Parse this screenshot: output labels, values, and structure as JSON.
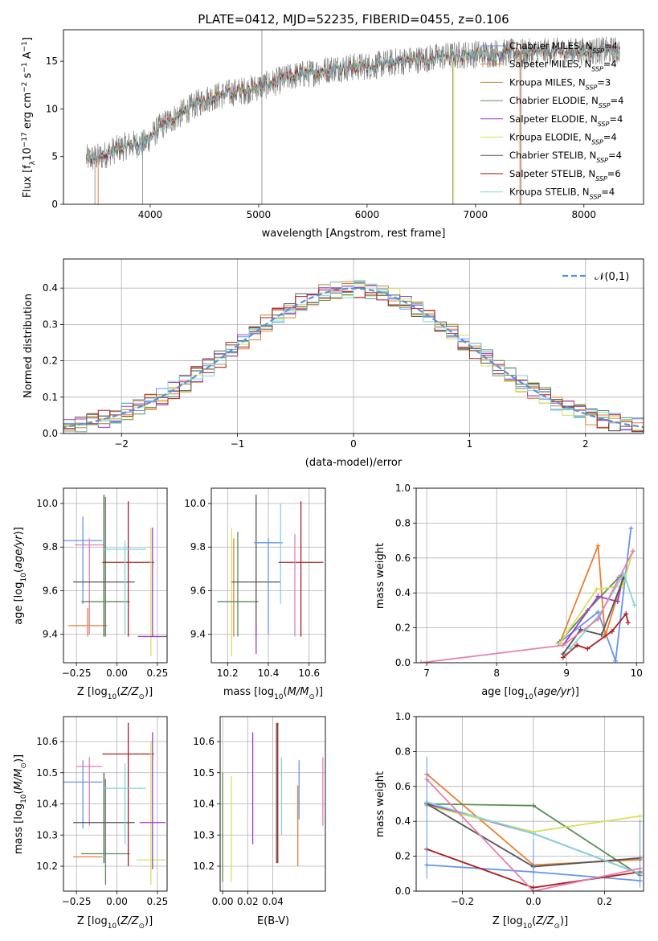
{
  "title": "PLATE=0412, MJD=52235, FIBERID=0455, z=0.106",
  "models": [
    {
      "imf": "Chabrier",
      "lib": "MILES",
      "nssp": "4",
      "color": "#6495ED"
    },
    {
      "imf": "Salpeter",
      "lib": "MILES",
      "nssp": "4",
      "color": "#ED7D31"
    },
    {
      "imf": "Kroupa",
      "lib": "MILES",
      "nssp": "3",
      "color": "#C08A2B"
    },
    {
      "imf": "Chabrier",
      "lib": "ELODIE",
      "nssp": "4",
      "color": "#5B8C5A"
    },
    {
      "imf": "Salpeter",
      "lib": "ELODIE",
      "nssp": "4",
      "color": "#A03CC8"
    },
    {
      "imf": "Kroupa",
      "lib": "ELODIE",
      "nssp": "4",
      "color": "#D8E05A"
    },
    {
      "imf": "Chabrier",
      "lib": "STELIB",
      "nssp": "4",
      "color": "#555555"
    },
    {
      "imf": "Salpeter",
      "lib": "STELIB",
      "nssp": "6",
      "color": "#AA1F1F"
    },
    {
      "imf": "Kroupa",
      "lib": "STELIB",
      "nssp": "4",
      "color": "#7FD6DC"
    }
  ],
  "extra_colors": {
    "salpeter_stelib_alt": "#E87FAE",
    "kroupa_elodie_alt": "#C8EA6A"
  },
  "chart_data": [
    {
      "id": "spectrum",
      "type": "line",
      "xlabel": "wavelength [Angstrom, rest frame]",
      "ylabel": "Flux [f_λ 10^-17 erg cm^-2 s^-1 A^-1]",
      "xlim": [
        3200,
        8550
      ],
      "ylim": [
        0,
        18.3
      ],
      "xticks": [
        4000,
        5000,
        6000,
        7000,
        8000
      ],
      "yticks": [
        0,
        5,
        10,
        15
      ],
      "legend": "upper right",
      "series_note": "data spectrum (gray) and 9 model fits",
      "anchors_x": [
        3450,
        3550,
        3650,
        3800,
        3950,
        4100,
        4300,
        4500,
        4700,
        4900,
        5100,
        5300,
        5500,
        5700,
        5900,
        6100,
        6300,
        6500,
        6700,
        6900,
        7100,
        7300,
        7500,
        7700,
        7900,
        8100,
        8300
      ],
      "anchors_y": [
        4.8,
        5.0,
        5.6,
        6.2,
        6.4,
        8.2,
        9.6,
        11.0,
        11.6,
        12.0,
        12.6,
        13.4,
        13.8,
        14.3,
        14.4,
        14.6,
        15.0,
        15.2,
        15.5,
        15.7,
        15.8,
        15.9,
        15.9,
        16.0,
        16.0,
        16.1,
        16.1
      ],
      "spikes": [
        [
          5030,
          0,
          18.3
        ],
        [
          3490,
          0,
          5.5
        ],
        [
          3930,
          0,
          6.0
        ],
        [
          6790,
          0,
          15.0
        ],
        [
          7420,
          0,
          16.0
        ]
      ]
    },
    {
      "id": "residuals",
      "type": "histogram",
      "xlabel": "(data-model)/error",
      "ylabel": "Normed distribution",
      "xlim": [
        -2.5,
        2.5
      ],
      "ylim": [
        0,
        0.48
      ],
      "xticks": [
        -2,
        -1,
        0,
        1,
        2
      ],
      "yticks": [
        0.0,
        0.1,
        0.2,
        0.3,
        0.4
      ],
      "bin_width": 0.1,
      "grid": true,
      "reference_curve": {
        "label": "𝒩(0,1)",
        "mean": 0,
        "sigma": 1,
        "color": "#5B8FD6",
        "style": "dashed"
      }
    },
    {
      "id": "age_vs_Z",
      "type": "errorbar",
      "xlabel": "Z [log10(Z/Z⊙)]",
      "ylabel": "age [log10(age/yr)]",
      "xlim": [
        -0.33,
        0.31
      ],
      "ylim": [
        9.27,
        10.07
      ],
      "xticks": [
        -0.25,
        0.0,
        0.25
      ],
      "yticks": [
        9.4,
        9.6,
        9.8,
        10.0
      ],
      "grid": true,
      "points": [
        {
          "x": -0.21,
          "xerr": 0.12,
          "y": 9.83,
          "ylo": 9.54,
          "yhi": 9.94,
          "color": "#6495ED"
        },
        {
          "x": -0.18,
          "xerr": 0.12,
          "y": 9.44,
          "ylo": 9.39,
          "yhi": 9.52,
          "color": "#ED7D31"
        },
        {
          "x": -0.17,
          "xerr": 0.09,
          "y": 9.81,
          "ylo": 9.4,
          "yhi": 9.84,
          "color": "#E87FAE"
        },
        {
          "x": -0.08,
          "xerr": 0.19,
          "y": 9.64,
          "ylo": 9.39,
          "yhi": 10.04,
          "color": "#555555"
        },
        {
          "x": -0.07,
          "xerr": 0.15,
          "y": 9.55,
          "ylo": 9.39,
          "yhi": 10.03,
          "color": "#5B8C5A"
        },
        {
          "x": 0.07,
          "xerr": 0.16,
          "y": 9.73,
          "ylo": 9.39,
          "yhi": 10.01,
          "color": "#AA1F1F"
        },
        {
          "x": 0.05,
          "xerr": 0.13,
          "y": 9.79,
          "ylo": 9.4,
          "yhi": 9.83,
          "color": "#7FD6DC"
        },
        {
          "x": 0.21,
          "xerr": 0.08,
          "y": 9.39,
          "ylo": 9.3,
          "yhi": 9.89,
          "color": "#D8E05A"
        },
        {
          "x": 0.22,
          "xerr": 0.09,
          "y": 9.39,
          "ylo": 9.39,
          "yhi": 9.89,
          "color": "#A03CC8"
        }
      ]
    },
    {
      "id": "age_vs_mass",
      "type": "errorbar",
      "xlabel": "mass [log10(M/M⊙)]",
      "ylabel": "",
      "xlim": [
        10.12,
        10.68
      ],
      "ylim": [
        9.27,
        10.07
      ],
      "xticks": [
        10.2,
        10.4,
        10.6
      ],
      "yticks": [
        9.4,
        9.6,
        9.8,
        10.0
      ],
      "grid": true,
      "points": [
        {
          "x": 10.22,
          "xerr": 0.0,
          "y": 9.39,
          "ylo": 9.3,
          "yhi": 9.89,
          "color": "#D8E05A"
        },
        {
          "x": 10.23,
          "xerr": 0.0,
          "y": 9.39,
          "ylo": 9.39,
          "yhi": 9.84,
          "color": "#ED7D31"
        },
        {
          "x": 10.25,
          "xerr": 0.1,
          "y": 9.55,
          "ylo": 9.39,
          "yhi": 9.87,
          "color": "#5B8C5A"
        },
        {
          "x": 10.34,
          "xerr": 0.12,
          "y": 9.64,
          "ylo": 9.39,
          "yhi": 10.04,
          "color": "#555555"
        },
        {
          "x": 10.34,
          "xerr": 0.0,
          "y": 9.44,
          "ylo": 9.31,
          "yhi": 9.45,
          "color": "#A03CC8"
        },
        {
          "x": 10.4,
          "xerr": 0.07,
          "y": 9.82,
          "ylo": 9.4,
          "yhi": 9.84,
          "color": "#6495ED"
        },
        {
          "x": 10.46,
          "xerr": 0.0,
          "y": 9.83,
          "ylo": 9.54,
          "yhi": 10.0,
          "color": "#7FD6DC"
        },
        {
          "x": 10.56,
          "xerr": 0.11,
          "y": 9.73,
          "ylo": 9.39,
          "yhi": 10.01,
          "color": "#AA1F1F"
        },
        {
          "x": 10.53,
          "xerr": 0.0,
          "y": 9.39,
          "ylo": 9.39,
          "yhi": 9.86,
          "color": "#E87FAE"
        }
      ]
    },
    {
      "id": "weight_vs_age",
      "type": "line",
      "xlabel": "age [log10(age/yr)]",
      "ylabel": "mass weight",
      "xlim": [
        6.85,
        10.1
      ],
      "ylim": [
        0,
        1
      ],
      "xticks": [
        7,
        8,
        9,
        10
      ],
      "yticks": [
        0.0,
        0.2,
        0.4,
        0.6,
        0.8,
        1.0
      ],
      "grid": true,
      "series": [
        {
          "color": "#6495ED",
          "x": [
            8.88,
            9.45,
            9.7,
            9.92
          ],
          "y": [
            0.11,
            0.29,
            0.01,
            0.77
          ]
        },
        {
          "color": "#ED7D31",
          "x": [
            8.9,
            9.45,
            9.55,
            9.8
          ],
          "y": [
            0.11,
            0.67,
            0.15,
            0.48
          ]
        },
        {
          "color": "#5B8C5A",
          "x": [
            8.9,
            9.3,
            9.75,
            9.8
          ],
          "y": [
            0.12,
            0.3,
            0.49,
            0.5
          ]
        },
        {
          "color": "#A03CC8",
          "x": [
            8.95,
            9.45,
            9.73,
            9.8
          ],
          "y": [
            0.1,
            0.38,
            0.35,
            0.48
          ]
        },
        {
          "color": "#D8E05A",
          "x": [
            8.9,
            9.43,
            9.8,
            9.95
          ],
          "y": [
            0.11,
            0.42,
            0.44,
            0.64
          ]
        },
        {
          "color": "#555555",
          "x": [
            8.95,
            9.2,
            9.5,
            9.82
          ],
          "y": [
            0.05,
            0.19,
            0.16,
            0.49
          ]
        },
        {
          "color": "#AA1F1F",
          "x": [
            8.95,
            9.15,
            9.3,
            9.65,
            9.85,
            9.88
          ],
          "y": [
            0.03,
            0.1,
            0.08,
            0.18,
            0.28,
            0.23
          ]
        },
        {
          "color": "#7FD6DC",
          "x": [
            9.05,
            9.48,
            9.82,
            9.97
          ],
          "y": [
            0.08,
            0.28,
            0.51,
            0.33
          ]
        },
        {
          "color": "#E87FAE",
          "x": [
            6.92,
            8.95,
            9.45,
            9.95
          ],
          "y": [
            0.0,
            0.1,
            0.25,
            0.64
          ]
        }
      ]
    },
    {
      "id": "mass_vs_Z",
      "type": "errorbar",
      "xlabel": "Z [log10(Z/Z⊙)]",
      "ylabel": "mass [log10(M/M⊙)]",
      "xlim": [
        -0.33,
        0.31
      ],
      "ylim": [
        10.12,
        10.68
      ],
      "xticks": [
        -0.25,
        0.0,
        0.25
      ],
      "yticks": [
        10.2,
        10.3,
        10.4,
        10.5,
        10.6
      ],
      "grid": true,
      "points": [
        {
          "x": -0.21,
          "xerr": 0.12,
          "y": 10.47,
          "ylo": 10.32,
          "yhi": 10.54,
          "color": "#6495ED"
        },
        {
          "x": -0.18,
          "xerr": 0.09,
          "y": 10.23,
          "ylo": 10.23,
          "yhi": 10.23,
          "color": "#ED7D31"
        },
        {
          "x": -0.17,
          "xerr": 0.08,
          "y": 10.52,
          "ylo": 10.33,
          "yhi": 10.55,
          "color": "#E87FAE"
        },
        {
          "x": -0.08,
          "xerr": 0.19,
          "y": 10.34,
          "ylo": 10.21,
          "yhi": 10.5,
          "color": "#555555"
        },
        {
          "x": -0.07,
          "xerr": 0.15,
          "y": 10.24,
          "ylo": 10.14,
          "yhi": 10.48,
          "color": "#5B8C5A"
        },
        {
          "x": 0.07,
          "xerr": 0.16,
          "y": 10.56,
          "ylo": 10.2,
          "yhi": 10.66,
          "color": "#AA1F1F"
        },
        {
          "x": 0.05,
          "xerr": 0.13,
          "y": 10.45,
          "ylo": 10.27,
          "yhi": 10.53,
          "color": "#7FD6DC"
        },
        {
          "x": 0.21,
          "xerr": 0.09,
          "y": 10.22,
          "ylo": 10.14,
          "yhi": 10.6,
          "color": "#D8E05A"
        },
        {
          "x": 0.22,
          "xerr": 0.08,
          "y": 10.34,
          "ylo": 10.19,
          "yhi": 10.63,
          "color": "#A03CC8"
        }
      ]
    },
    {
      "id": "mass_vs_ebv",
      "type": "errorbar",
      "xlabel": "E(B-V)",
      "ylabel": "",
      "xlim": [
        -0.002,
        0.082
      ],
      "ylim": [
        10.12,
        10.68
      ],
      "xticks": [
        0.0,
        0.02,
        0.04
      ],
      "yticks": [
        10.2,
        10.3,
        10.4,
        10.5,
        10.6
      ],
      "grid": true,
      "points": [
        {
          "x": 0.0,
          "y": 10.32,
          "ylo": 10.15,
          "yhi": 10.5,
          "color": "#5B8C5A"
        },
        {
          "x": 0.007,
          "y": 10.32,
          "ylo": 10.15,
          "yhi": 10.49,
          "color": "#D8E05A"
        },
        {
          "x": 0.024,
          "y": 10.45,
          "ylo": 10.27,
          "yhi": 10.63,
          "color": "#A03CC8"
        },
        {
          "x": 0.043,
          "y": 10.43,
          "ylo": 10.21,
          "yhi": 10.66,
          "color": "#555555"
        },
        {
          "x": 0.044,
          "y": 10.43,
          "ylo": 10.21,
          "yhi": 10.66,
          "color": "#AA1F1F"
        },
        {
          "x": 0.047,
          "y": 10.41,
          "ylo": 10.3,
          "yhi": 10.55,
          "color": "#7FD6DC"
        },
        {
          "x": 0.06,
          "y": 10.33,
          "ylo": 10.2,
          "yhi": 10.46,
          "color": "#ED7D31"
        },
        {
          "x": 0.061,
          "y": 10.45,
          "ylo": 10.35,
          "yhi": 10.54,
          "color": "#6495ED"
        },
        {
          "x": 0.08,
          "y": 10.45,
          "ylo": 10.33,
          "yhi": 10.55,
          "color": "#E87FAE"
        }
      ]
    },
    {
      "id": "weight_vs_Z",
      "type": "line",
      "xlabel": "Z [log10(Z/Z⊙)]",
      "ylabel": "mass weight",
      "xlim": [
        -0.33,
        0.31
      ],
      "ylim": [
        0,
        1
      ],
      "xticks": [
        -0.2,
        0.0,
        0.2
      ],
      "yticks": [
        0.0,
        0.2,
        0.4,
        0.6,
        0.8,
        1.0
      ],
      "grid": true,
      "series": [
        {
          "color": "#6495ED",
          "x": [
            -0.3,
            0.0,
            0.3
          ],
          "y": [
            0.15,
            0.11,
            0.06
          ]
        },
        {
          "color": "#ED7D31",
          "x": [
            -0.3,
            0.0,
            0.3
          ],
          "y": [
            0.67,
            0.15,
            0.18
          ]
        },
        {
          "color": "#5B8C5A",
          "x": [
            -0.3,
            0.0,
            0.3
          ],
          "y": [
            0.5,
            0.49,
            0.09
          ]
        },
        {
          "color": "#A03CC8",
          "x": [
            -0.3,
            0.0,
            0.3
          ],
          "y": [
            0.5,
            0.33,
            0.1
          ]
        },
        {
          "color": "#D8E05A",
          "x": [
            -0.3,
            0.0,
            0.3
          ],
          "y": [
            0.49,
            0.34,
            0.43
          ]
        },
        {
          "color": "#555555",
          "x": [
            -0.3,
            0.0,
            0.3
          ],
          "y": [
            0.5,
            0.14,
            0.19
          ]
        },
        {
          "color": "#AA1F1F",
          "x": [
            -0.3,
            0.0,
            0.3
          ],
          "y": [
            0.24,
            0.02,
            0.11
          ]
        },
        {
          "color": "#7FD6DC",
          "x": [
            -0.3,
            0.0,
            0.3
          ],
          "y": [
            0.51,
            0.33,
            0.1
          ]
        },
        {
          "color": "#E87FAE",
          "x": [
            -0.3,
            0.0,
            0.3
          ],
          "y": [
            0.64,
            0.0,
            0.13
          ]
        }
      ],
      "error_ticks_y": {
        "-0.3": [
          0.77,
          0.16,
          0.07
        ],
        "0.0": [
          0.3,
          0.05
        ],
        "0.3": [
          0.41,
          0.36,
          0.02
        ]
      }
    }
  ]
}
